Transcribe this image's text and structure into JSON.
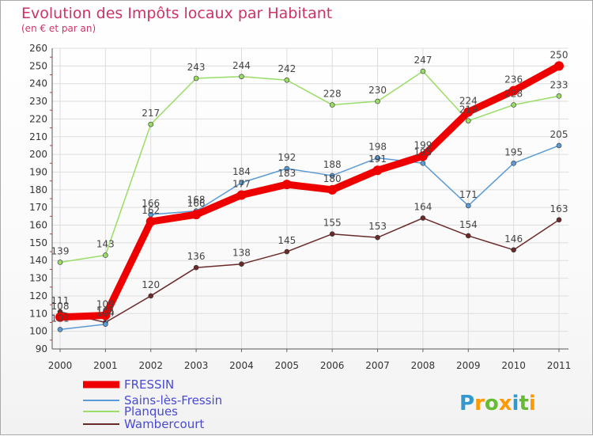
{
  "chart_data": {
    "type": "line",
    "title": "Evolution des Impôts locaux par Habitant",
    "subtitle": "(en € et par an)",
    "xlabel": "",
    "ylabel": "",
    "x": [
      "2000",
      "2001",
      "2002",
      "2003",
      "2004",
      "2005",
      "2006",
      "2007",
      "2008",
      "2009",
      "2010",
      "2011"
    ],
    "ylim": [
      90,
      260
    ],
    "yticks": [
      90,
      100,
      110,
      120,
      130,
      140,
      150,
      160,
      170,
      180,
      190,
      200,
      210,
      220,
      230,
      240,
      250,
      260
    ],
    "grid": true,
    "legend_position": "bottom-left",
    "series": [
      {
        "name": "FRESSIN",
        "color": "#ee0000",
        "values": [
          108,
          109,
          162,
          166,
          177,
          183,
          180,
          191,
          199,
          224,
          236,
          250
        ]
      },
      {
        "name": "Sains-lès-Fressin",
        "color": "#5b9bd5",
        "values": [
          101,
          104,
          166,
          168,
          184,
          192,
          188,
          198,
          195,
          171,
          195,
          205
        ]
      },
      {
        "name": "Planques",
        "color": "#99dd66",
        "values": [
          139,
          143,
          217,
          243,
          244,
          242,
          228,
          230,
          247,
          219,
          228,
          233
        ]
      },
      {
        "name": "Wambercourt",
        "color": "#6b2a2a",
        "values": [
          111,
          105,
          120,
          136,
          138,
          145,
          155,
          153,
          164,
          154,
          146,
          163
        ]
      }
    ]
  },
  "logo": {
    "text": "Proxiti",
    "colors": [
      "#3399cc",
      "#ff9900",
      "#66bb33",
      "#ff9900",
      "#3399cc",
      "#66bb33",
      "#ff9900"
    ]
  }
}
